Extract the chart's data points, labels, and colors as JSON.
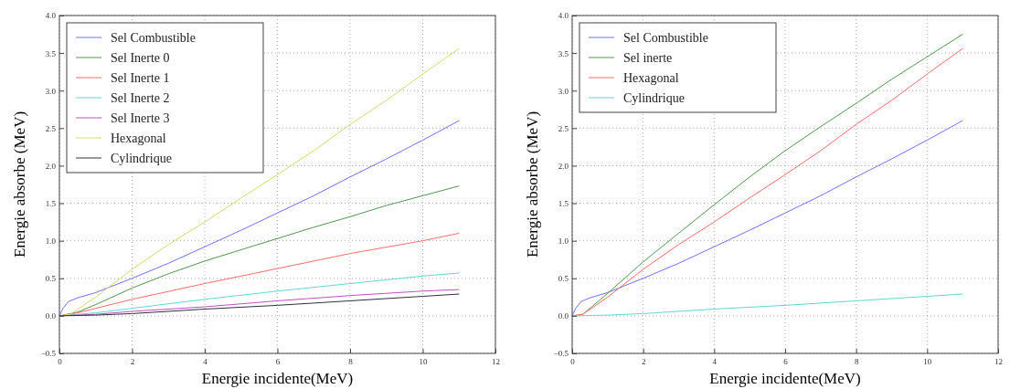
{
  "chart_data": [
    {
      "type": "line",
      "xlabel": "Energie incidente(MeV)",
      "ylabel": "Energie absorbe (MeV)",
      "xlim": [
        0,
        12
      ],
      "ylim": [
        -0.5,
        4.0
      ],
      "xticks": [
        0,
        2,
        4,
        6,
        8,
        10,
        12
      ],
      "yticks": [
        {
          "value": -0.5,
          "label": "−0.5"
        },
        {
          "value": 0,
          "label": "0.0"
        },
        {
          "value": 0.5,
          "label": "0.5"
        },
        {
          "value": 1,
          "label": "1.0"
        },
        {
          "value": 1.5,
          "label": "1.5"
        },
        {
          "value": 2,
          "label": "2.0"
        },
        {
          "value": 2.5,
          "label": "2.5"
        },
        {
          "value": 3,
          "label": "3.0"
        },
        {
          "value": 3.5,
          "label": "3.5"
        },
        {
          "value": 4,
          "label": "4.0"
        }
      ],
      "grid": true,
      "legend": "top left",
      "line_style": "solid",
      "marker": "none",
      "series": [
        {
          "name": "Sel Combustible",
          "color": "#7070ff",
          "x": [
            0,
            0.1,
            0.25,
            0.5,
            1,
            2,
            3,
            4,
            5,
            6,
            7,
            8,
            9,
            10,
            11
          ],
          "values": [
            0,
            0.1,
            0.19,
            0.24,
            0.31,
            0.5,
            0.7,
            0.92,
            1.14,
            1.37,
            1.6,
            1.85,
            2.09,
            2.34,
            2.6
          ]
        },
        {
          "name": "Sel Inerte 0",
          "color": "#4f9a4f",
          "x": [
            0,
            0.5,
            1,
            2,
            3,
            4,
            5,
            6,
            7,
            8,
            9,
            10,
            11
          ],
          "values": [
            0,
            0.05,
            0.15,
            0.37,
            0.56,
            0.73,
            0.88,
            1.03,
            1.18,
            1.32,
            1.47,
            1.6,
            1.73
          ]
        },
        {
          "name": "Sel Inerte 1",
          "color": "#ff6b6b",
          "x": [
            0,
            0.5,
            1,
            2,
            4,
            6,
            8,
            10,
            11
          ],
          "values": [
            0,
            0.04,
            0.1,
            0.22,
            0.43,
            0.63,
            0.83,
            1.0,
            1.1
          ]
        },
        {
          "name": "Sel Inerte 2",
          "color": "#5fd8d8",
          "x": [
            0,
            1,
            2,
            4,
            6,
            8,
            10,
            11
          ],
          "values": [
            0,
            0.04,
            0.1,
            0.22,
            0.33,
            0.43,
            0.53,
            0.57
          ]
        },
        {
          "name": "Sel Inerte 3",
          "color": "#c050c0",
          "x": [
            0,
            1,
            2,
            4,
            6,
            8,
            10,
            11
          ],
          "values": [
            0,
            0.02,
            0.06,
            0.12,
            0.2,
            0.27,
            0.33,
            0.35
          ]
        },
        {
          "name": "Hexagonal",
          "color": "#d8d870",
          "x": [
            0,
            0.3,
            1,
            2,
            3,
            4,
            5,
            6,
            7,
            8,
            9,
            10,
            11
          ],
          "values": [
            0,
            0.02,
            0.25,
            0.62,
            0.95,
            1.25,
            1.57,
            1.88,
            2.2,
            2.55,
            2.87,
            3.22,
            3.56
          ]
        },
        {
          "name": "Cylindrique",
          "color": "#303040",
          "x": [
            0,
            1,
            2,
            4,
            6,
            8,
            10,
            11
          ],
          "values": [
            0,
            0.01,
            0.03,
            0.09,
            0.14,
            0.2,
            0.26,
            0.29
          ]
        }
      ]
    },
    {
      "type": "line",
      "xlabel": "Energie incidente(MeV)",
      "ylabel": "Energie absorbe (MeV)",
      "xlim": [
        0,
        12
      ],
      "ylim": [
        -0.5,
        4.0
      ],
      "xticks": [
        0,
        2,
        4,
        6,
        8,
        10,
        12
      ],
      "yticks": [
        {
          "value": -0.5,
          "label": "−0.5"
        },
        {
          "value": 0,
          "label": "0.0"
        },
        {
          "value": 0.5,
          "label": "0.5"
        },
        {
          "value": 1,
          "label": "1.0"
        },
        {
          "value": 1.5,
          "label": "1.5"
        },
        {
          "value": 2,
          "label": "2.0"
        },
        {
          "value": 2.5,
          "label": "2.5"
        },
        {
          "value": 3,
          "label": "3.0"
        },
        {
          "value": 3.5,
          "label": "3.5"
        },
        {
          "value": 4,
          "label": "4.0"
        }
      ],
      "grid": true,
      "legend": "top left",
      "line_style": "solid",
      "marker": "none",
      "series": [
        {
          "name": "Sel Combustible",
          "color": "#7070ff",
          "x": [
            0,
            0.1,
            0.25,
            0.5,
            1,
            2,
            3,
            4,
            5,
            6,
            7,
            8,
            9,
            10,
            11
          ],
          "values": [
            0,
            0.1,
            0.19,
            0.24,
            0.31,
            0.5,
            0.7,
            0.92,
            1.14,
            1.37,
            1.6,
            1.85,
            2.09,
            2.34,
            2.6
          ]
        },
        {
          "name": "Sel inerte",
          "color": "#4f9a4f",
          "x": [
            0,
            0.3,
            1,
            2,
            3,
            4,
            5,
            6,
            7,
            8,
            9,
            10,
            11
          ],
          "values": [
            0,
            0.02,
            0.3,
            0.72,
            1.1,
            1.48,
            1.85,
            2.2,
            2.52,
            2.83,
            3.15,
            3.45,
            3.75
          ]
        },
        {
          "name": "Hexagonal",
          "color": "#ff6b6b",
          "x": [
            0,
            0.3,
            1,
            2,
            3,
            4,
            5,
            6,
            7,
            8,
            9,
            10,
            11
          ],
          "values": [
            0,
            0.02,
            0.25,
            0.62,
            0.95,
            1.25,
            1.57,
            1.88,
            2.2,
            2.55,
            2.87,
            3.22,
            3.56
          ]
        },
        {
          "name": "Cylindrique",
          "color": "#5fd8d8",
          "x": [
            0,
            1,
            2,
            4,
            6,
            8,
            10,
            11
          ],
          "values": [
            0,
            0.01,
            0.03,
            0.09,
            0.14,
            0.2,
            0.26,
            0.29
          ]
        }
      ]
    }
  ]
}
